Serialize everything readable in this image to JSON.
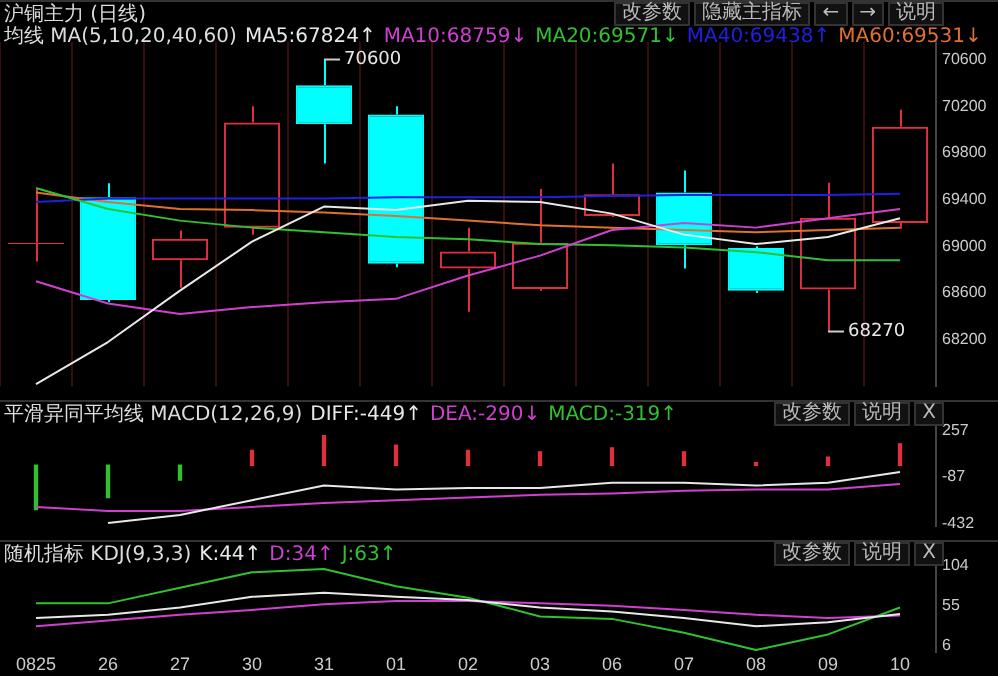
{
  "chart_data": [
    {
      "type": "candlestick",
      "title": "沪铜主力 (日线)",
      "legend_title": "均线 MA(5,10,20,40,60)",
      "legend": "top",
      "grid": "x",
      "tick_labels": "y",
      "categories": [
        "0825",
        "26",
        "27",
        "30",
        "31",
        "01",
        "02",
        "03",
        "06",
        "07",
        "08",
        "09",
        "10"
      ],
      "ohlc": [
        [
          69020,
          69490,
          68870,
          69030
        ],
        [
          69420,
          69540,
          68520,
          68540
        ],
        [
          68880,
          69135,
          68645,
          69065
        ],
        [
          69160,
          70200,
          69100,
          70060
        ],
        [
          70380,
          70600,
          69710,
          70045
        ],
        [
          70130,
          70200,
          68820,
          68850
        ],
        [
          68810,
          69160,
          68440,
          68955
        ],
        [
          68635,
          69490,
          68620,
          69030
        ],
        [
          69260,
          69710,
          69250,
          69445
        ],
        [
          69460,
          69650,
          68810,
          69010
        ],
        [
          68985,
          69000,
          68600,
          68620
        ],
        [
          68630,
          69545,
          68270,
          69245
        ],
        [
          69200,
          70170,
          69150,
          70025
        ]
      ],
      "colors": [
        "#e03040",
        "#00ffff",
        "#e03040",
        "#e03040",
        "#00ffff",
        "#00ffff",
        "#e03040",
        "#e03040",
        "#e03040",
        "#00ffff",
        "#00ffff",
        "#e03040",
        "#e03040"
      ],
      "series": [
        {
          "name": "MA5:67824↑",
          "type": "line",
          "color": "#e8e8e8",
          "values": [
            67820,
            68180,
            68620,
            69040,
            69340,
            69310,
            69390,
            69380,
            69280,
            69100,
            69020,
            69080,
            69240
          ]
        },
        {
          "name": "MA10:68759↓",
          "type": "line",
          "color": "#d040d0",
          "values": [
            68700,
            68510,
            68420,
            68480,
            68520,
            68550,
            68750,
            68920,
            69140,
            69200,
            69160,
            69240,
            69320
          ]
        },
        {
          "name": "MA20:69571↓",
          "type": "line",
          "color": "#30c030",
          "values": [
            69500,
            69320,
            69220,
            69160,
            69120,
            69080,
            69060,
            69020,
            69010,
            68990,
            68950,
            68880,
            68880
          ]
        },
        {
          "name": "MA40:69438↑",
          "type": "line",
          "color": "#2020e0",
          "values": [
            69380,
            69410,
            69410,
            69410,
            69410,
            69420,
            69420,
            69420,
            69430,
            69440,
            69440,
            69440,
            69450
          ]
        },
        {
          "name": "MA60:69531↓",
          "type": "line",
          "color": "#e07030",
          "values": [
            69460,
            69380,
            69320,
            69310,
            69290,
            69260,
            69220,
            69180,
            69160,
            69140,
            69120,
            69140,
            69160
          ]
        }
      ],
      "ylim": [
        67800,
        70750
      ],
      "yticks": [
        68200,
        68600,
        69000,
        69400,
        69800,
        70200,
        70600
      ],
      "annotations": [
        "改参数",
        "隐藏主指标",
        "←",
        "→",
        "说明",
        {
          "text": "70600",
          "x": "31",
          "y": 70600
        },
        {
          "text": "68270",
          "x": "09",
          "y": 68270
        }
      ]
    },
    {
      "type": "line",
      "title": "平滑异同平均线 MACD(12,26,9)",
      "legend": "top left",
      "tick_labels": "y",
      "categories": [
        "0825",
        "26",
        "27",
        "30",
        "31",
        "01",
        "02",
        "03",
        "06",
        "07",
        "08",
        "09",
        "10"
      ],
      "series": [
        {
          "name": "DIFF:-449↑",
          "type": "line",
          "color": "#e8e8e8",
          "values": [
            null,
            -430,
            -370,
            -260,
            -150,
            -180,
            -170,
            -170,
            -130,
            -130,
            -150,
            -130,
            -50
          ]
        },
        {
          "name": "DEA:-290↓",
          "type": "line",
          "color": "#d040d0",
          "values": [
            -310,
            -340,
            -340,
            -310,
            -280,
            -260,
            -240,
            -220,
            -210,
            -190,
            -180,
            -180,
            -140
          ]
        },
        {
          "name": "MACD:-319↑",
          "type": "bar",
          "color": "#30c030",
          "colors": [
            "#30c030",
            "#30c030",
            "#30c030",
            "#e03040",
            "#e03040",
            "#e03040",
            "#e03040",
            "#e03040",
            "#e03040",
            "#e03040",
            "#e03040",
            "#e03040",
            "#e03040"
          ],
          "values": [
            -330,
            -240,
            -110,
            110,
            220,
            150,
            110,
            100,
            130,
            100,
            20,
            60,
            160
          ]
        }
      ],
      "ylim": [
        -455,
        355
      ],
      "yticks": [
        257,
        -87,
        -432
      ],
      "annotations": [
        "改参数",
        "说明",
        "X"
      ]
    },
    {
      "type": "line",
      "title": "随机指标 KDJ(9,3,3)",
      "legend": "top left",
      "categories": [
        "0825",
        "26",
        "27",
        "30",
        "31",
        "01",
        "02",
        "03",
        "06",
        "07",
        "08",
        "09",
        "10"
      ],
      "series": [
        {
          "name": "K:44↑",
          "type": "line",
          "color": "#e8e8e8",
          "values": [
            40,
            44,
            53,
            66,
            71,
            66,
            62,
            53,
            48,
            40,
            30,
            35,
            45
          ]
        },
        {
          "name": "D:34↑",
          "type": "line",
          "color": "#d040d0",
          "values": [
            30,
            37,
            44,
            50,
            57,
            61,
            61,
            58,
            55,
            50,
            44,
            40,
            43
          ]
        },
        {
          "name": "J:63↑",
          "type": "line",
          "color": "#30c030",
          "values": [
            58,
            58,
            77,
            96,
            100,
            79,
            65,
            42,
            39,
            22,
            1,
            20,
            53
          ]
        }
      ],
      "ylim": [
        -2,
        114
      ],
      "yticks": [
        104,
        55,
        6
      ],
      "annotations": [
        "改参数",
        "说明",
        "X"
      ]
    }
  ]
}
